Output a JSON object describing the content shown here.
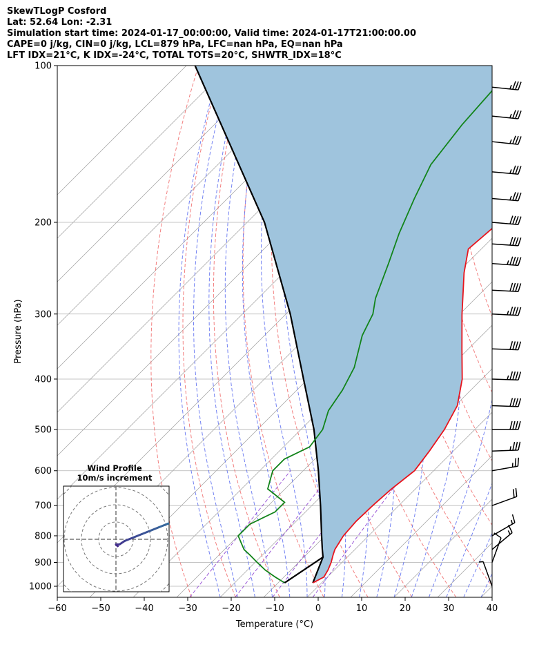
{
  "header": {
    "lines": [
      "SkewTLogP Cosford",
      "Lat: 52.64   Lon: -2.31",
      "Simulation start time: 2024-01-17_00:00:00, Valid time: 2024-01-17T21:00:00.00",
      "CAPE=0 j/kg, CIN=0 j/kg, LCL=879 hPa, LFC=nan hPa, EQ=nan hPa",
      "LFT IDX=21°C, K IDX=-24°C, TOTAL TOTS=20°C, SHWTR_IDX=18°C"
    ]
  },
  "chart_data": {
    "type": "skewt-logp",
    "xlabel": "Temperature (°C)",
    "ylabel": "Pressure (hPa)",
    "xlim": [
      -60,
      40
    ],
    "plim": [
      1050,
      100
    ],
    "x_ticks": [
      "−60",
      "−50",
      "−40",
      "−30",
      "−20",
      "−10",
      "0",
      "10",
      "20",
      "30",
      "40"
    ],
    "p_ticks": [
      "100",
      "200",
      "300",
      "400",
      "500",
      "600",
      "700",
      "800",
      "900",
      "1000"
    ],
    "grid": true,
    "colors": {
      "temperature": "#e8141c",
      "dewpoint": "#12841a",
      "parcel": "#000000",
      "cape_fill": "#9fc4dd",
      "dry_adiabat": "#f06868",
      "moist_adiabat": "#5b6cf0",
      "mixing_ratio": "#8a3ad0",
      "isotherm": "#a8a8a8"
    },
    "series": [
      {
        "points": [
          [
            985,
            -2.0
          ],
          [
            960,
            -0.8
          ],
          [
            930,
            -1.5
          ],
          [
            900,
            -2.5
          ],
          [
            870,
            -3.8
          ],
          [
            850,
            -4.6
          ],
          [
            800,
            -5.8
          ],
          [
            750,
            -6.2
          ],
          [
            700,
            -6.0
          ],
          [
            650,
            -5.5
          ],
          [
            600,
            -4.4
          ],
          [
            550,
            -5.5
          ],
          [
            500,
            -7.0
          ],
          [
            450,
            -9.5
          ],
          [
            400,
            -14.5
          ],
          [
            350,
            -21.5
          ],
          [
            300,
            -29.5
          ],
          [
            250,
            -38.5
          ],
          [
            225,
            -43.0
          ],
          [
            200,
            -42.0
          ],
          [
            175,
            -42.0
          ],
          [
            150,
            -42.0
          ],
          [
            125,
            -47.0
          ],
          [
            110,
            -54.0
          ],
          [
            100,
            -59.0
          ]
        ]
      },
      {
        "points": [
          [
            985,
            -8.5
          ],
          [
            960,
            -12.0
          ],
          [
            930,
            -16.0
          ],
          [
            900,
            -19.5
          ],
          [
            870,
            -23.0
          ],
          [
            850,
            -25.5
          ],
          [
            800,
            -30.0
          ],
          [
            760,
            -30.0
          ],
          [
            720,
            -27.0
          ],
          [
            690,
            -27.0
          ],
          [
            650,
            -34.0
          ],
          [
            600,
            -37.0
          ],
          [
            570,
            -37.0
          ],
          [
            540,
            -34.0
          ],
          [
            500,
            -35.0
          ],
          [
            460,
            -38.0
          ],
          [
            420,
            -39.5
          ],
          [
            380,
            -42.0
          ],
          [
            330,
            -47.5
          ],
          [
            300,
            -50.0
          ],
          [
            280,
            -53.0
          ],
          [
            240,
            -58.0
          ],
          [
            210,
            -62.5
          ],
          [
            180,
            -67.0
          ],
          [
            155,
            -71.0
          ],
          [
            130,
            -73.0
          ],
          [
            110,
            -74.0
          ],
          [
            100,
            -75.0
          ]
        ]
      }
    ],
    "parcel": [
      [
        985,
        -2.0
      ],
      [
        879,
        -5.6
      ],
      [
        850,
        -7.5
      ],
      [
        800,
        -10.8
      ],
      [
        700,
        -18.0
      ],
      [
        600,
        -26.5
      ],
      [
        500,
        -37.0
      ],
      [
        400,
        -51.0
      ],
      [
        300,
        -69.0
      ],
      [
        200,
        -96.0
      ],
      [
        100,
        -148.0
      ]
    ],
    "wind_barbs": [
      {
        "p": 1000,
        "speed": 5,
        "dir": 160
      },
      {
        "p": 900,
        "speed": 10,
        "dir": 200
      },
      {
        "p": 850,
        "speed": 15,
        "dir": 230
      },
      {
        "p": 800,
        "speed": 15,
        "dir": 240
      },
      {
        "p": 700,
        "speed": 20,
        "dir": 250
      },
      {
        "p": 600,
        "speed": 25,
        "dir": 260
      },
      {
        "p": 550,
        "speed": 35,
        "dir": 268
      },
      {
        "p": 500,
        "speed": 40,
        "dir": 270
      },
      {
        "p": 450,
        "speed": 40,
        "dir": 272
      },
      {
        "p": 400,
        "speed": 45,
        "dir": 272
      },
      {
        "p": 350,
        "speed": 40,
        "dir": 272
      },
      {
        "p": 300,
        "speed": 45,
        "dir": 273
      },
      {
        "p": 270,
        "speed": 40,
        "dir": 273
      },
      {
        "p": 240,
        "speed": 45,
        "dir": 274
      },
      {
        "p": 220,
        "speed": 40,
        "dir": 274
      },
      {
        "p": 200,
        "speed": 40,
        "dir": 275
      },
      {
        "p": 180,
        "speed": 35,
        "dir": 275
      },
      {
        "p": 160,
        "speed": 35,
        "dir": 275
      },
      {
        "p": 140,
        "speed": 35,
        "dir": 276
      },
      {
        "p": 125,
        "speed": 35,
        "dir": 276
      },
      {
        "p": 110,
        "speed": 35,
        "dir": 276
      }
    ],
    "hodograph": {
      "title": "Wind Profile",
      "subtitle": "10m/s increment",
      "ring_step": 10,
      "points": [
        [
          1,
          -4
        ],
        [
          0,
          -3
        ],
        [
          2,
          -3
        ],
        [
          5,
          -1
        ],
        [
          10,
          1
        ],
        [
          15,
          3
        ],
        [
          20,
          5
        ],
        [
          25,
          7
        ],
        [
          30,
          9
        ],
        [
          38,
          11
        ]
      ]
    }
  }
}
